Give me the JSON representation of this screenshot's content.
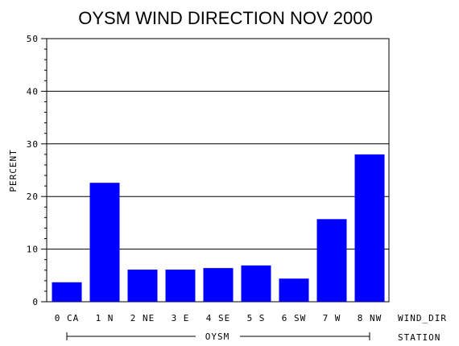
{
  "chart_data": {
    "type": "bar",
    "title": "OYSM WIND DIRECTION NOV 2000",
    "ylabel": "PERCENT",
    "xlabel": "WIND_DIR",
    "group_axis_label": "STATION",
    "group_label": "OYSM",
    "categories": [
      "0 CA",
      "1 N",
      "2 NE",
      "3 E",
      "4 SE",
      "5 S",
      "6 SW",
      "7 W",
      "8 NW"
    ],
    "values": [
      3.7,
      22.6,
      6.1,
      6.1,
      6.4,
      6.9,
      4.4,
      15.7,
      28.0
    ],
    "ylim": [
      0,
      50
    ],
    "yticks": [
      "0",
      "10",
      "20",
      "30",
      "40",
      "50"
    ],
    "grid": true,
    "bar_color": "#0000ff"
  }
}
